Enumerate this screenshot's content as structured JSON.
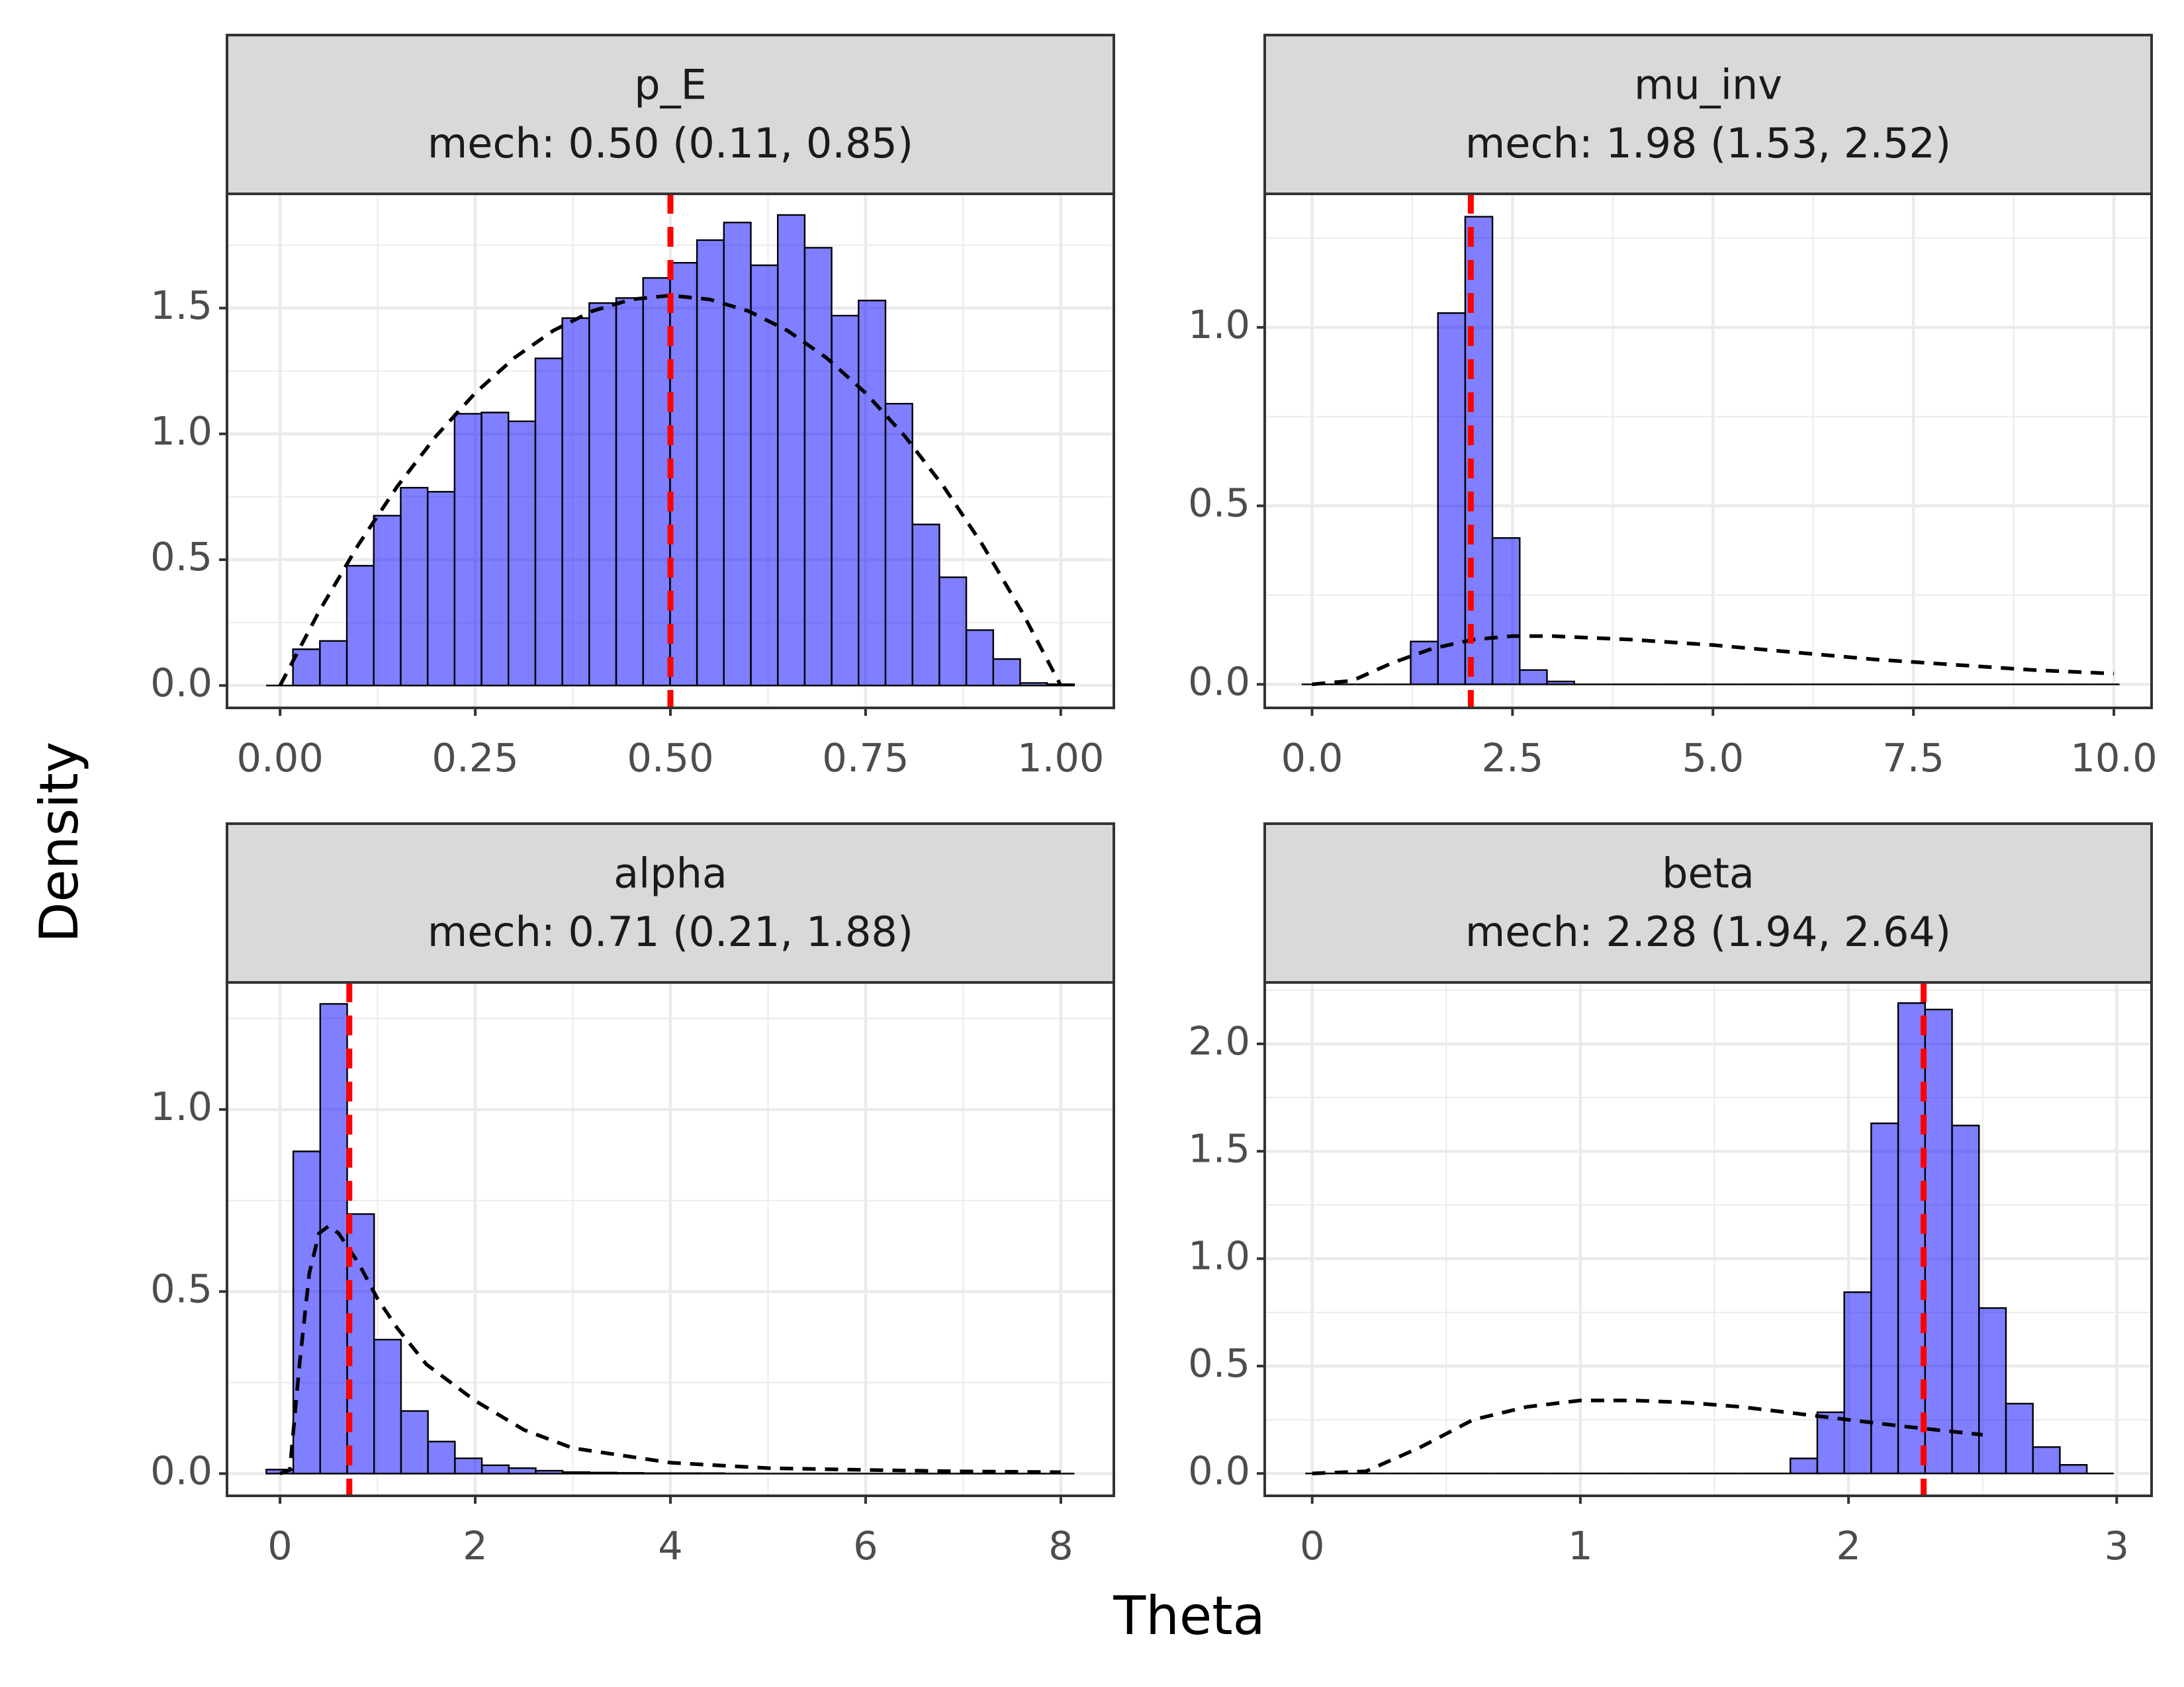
{
  "xlabel": "Theta",
  "ylabel": "Density",
  "chart_data": [
    {
      "type": "histogram",
      "title": "p_E",
      "subtitle": "mech: 0.50 (0.11, 0.85)",
      "bins": [
        -0.018,
        0.0165,
        0.051,
        0.0855,
        0.12,
        0.1545,
        0.189,
        0.2235,
        0.258,
        0.2925,
        0.327,
        0.3615,
        0.396,
        0.4305,
        0.465,
        0.4995,
        0.534,
        0.5685,
        0.603,
        0.6375,
        0.672,
        0.7065,
        0.741,
        0.7755,
        0.81,
        0.8445,
        0.879,
        0.9135,
        0.948,
        0.9825,
        1.017
      ],
      "values": [
        0,
        0.144,
        0.177,
        0.476,
        0.675,
        0.786,
        0.77,
        1.08,
        1.085,
        1.05,
        1.3,
        1.46,
        1.52,
        1.54,
        1.62,
        1.68,
        1.77,
        1.84,
        1.67,
        1.87,
        1.74,
        1.47,
        1.53,
        1.12,
        0.64,
        0.43,
        0.22,
        0.105,
        0.01,
        0.005
      ],
      "color": "#0000ff",
      "opacity": 0.5,
      "xlim": [
        -0.068,
        1.068
      ],
      "ylim": [
        -0.089,
        1.954
      ],
      "xticks": [
        {
          "value": 0,
          "label": "0.00"
        },
        0.25,
        {
          "value": 0.5,
          "label": "0.50"
        },
        0.75,
        {
          "value": 1,
          "label": "1.00"
        }
      ],
      "yticks": [
        {
          "value": 0,
          "label": "0.0"
        },
        0.5,
        {
          "value": 1,
          "label": "1.0"
        },
        1.5
      ],
      "grid": true,
      "vline": {
        "value": 0.5,
        "color": "#ff0000"
      },
      "prior": {
        "x": [
          0,
          0.05,
          0.1,
          0.15,
          0.2,
          0.25,
          0.3,
          0.35,
          0.4,
          0.45,
          0.5,
          0.55,
          0.6,
          0.65,
          0.7,
          0.75,
          0.8,
          0.85,
          0.9,
          0.95,
          1.0
        ],
        "values": [
          0,
          0.2945,
          0.558,
          0.7905,
          0.992,
          1.1625,
          1.302,
          1.4105,
          1.488,
          1.5345,
          1.55,
          1.5345,
          1.488,
          1.4105,
          1.302,
          1.1625,
          0.992,
          0.7905,
          0.558,
          0.2945,
          0
        ],
        "color": "#000000"
      }
    },
    {
      "type": "histogram",
      "title": "mu_inv",
      "subtitle": "mech: 1.98 (1.53, 2.52)",
      "bins": [
        -0.13,
        0.21,
        0.55,
        0.89,
        1.23,
        1.57,
        1.91,
        2.25,
        2.59,
        2.93,
        3.27,
        3.61,
        3.95,
        4.29,
        4.63,
        4.97,
        5.31,
        5.65,
        5.99,
        6.33,
        6.67,
        7.01,
        7.35,
        7.69,
        8.03,
        8.37,
        8.71,
        9.05,
        9.39,
        9.73,
        10.07
      ],
      "values": [
        0,
        0,
        0,
        0,
        0.12,
        1.04,
        1.31,
        0.41,
        0.04,
        0.008,
        0,
        0,
        0,
        0,
        0,
        0,
        0,
        0,
        0,
        0,
        0,
        0,
        0,
        0,
        0,
        0,
        0,
        0,
        0,
        0
      ],
      "color": "#0000ff",
      "opacity": 0.5,
      "xlim": [
        -0.59,
        10.47
      ],
      "ylim": [
        -0.066,
        1.374
      ],
      "xticks": [
        {
          "value": 0,
          "label": "0.0"
        },
        2.5,
        {
          "value": 5,
          "label": "5.0"
        },
        7.5,
        {
          "value": 10,
          "label": "10.0"
        }
      ],
      "yticks": [
        {
          "value": 0,
          "label": "0.0"
        },
        0.5,
        {
          "value": 1,
          "label": "1.0"
        }
      ],
      "grid": true,
      "vline": {
        "value": 1.98,
        "color": "#ff0000"
      },
      "prior": {
        "x": [
          0,
          0.5,
          1,
          1.5,
          2,
          2.5,
          3,
          4,
          5,
          6,
          7,
          8,
          9,
          10
        ],
        "values": [
          0,
          0.01,
          0.06,
          0.1,
          0.125,
          0.135,
          0.135,
          0.125,
          0.11,
          0.09,
          0.07,
          0.055,
          0.04,
          0.03
        ],
        "color": "#000000"
      }
    },
    {
      "type": "histogram",
      "title": "alpha",
      "subtitle": "mech: 0.71 (0.21, 1.88)",
      "bins": [
        -0.14,
        0.136,
        0.412,
        0.688,
        0.964,
        1.24,
        1.516,
        1.792,
        2.068,
        2.344,
        2.62,
        2.896,
        3.172,
        3.448,
        3.724,
        4.0,
        4.276,
        4.552,
        4.828,
        5.104,
        5.38,
        5.656,
        5.932,
        6.208,
        6.484,
        6.76,
        7.036,
        7.312,
        7.588,
        7.864,
        8.14
      ],
      "values": [
        0.011,
        0.885,
        1.29,
        0.713,
        0.368,
        0.172,
        0.088,
        0.042,
        0.023,
        0.015,
        0.008,
        0.004,
        0.003,
        0.002,
        0.001,
        0.001,
        0.001,
        0,
        0,
        0,
        0,
        0,
        0,
        0,
        0,
        0,
        0,
        0,
        0,
        0
      ],
      "color": "#0000ff",
      "opacity": 0.5,
      "xlim": [
        -0.543,
        8.543
      ],
      "ylim": [
        -0.061,
        1.349
      ],
      "xticks": [
        0,
        2,
        4,
        6,
        8
      ],
      "yticks": [
        {
          "value": 0,
          "label": "0.0"
        },
        0.5,
        {
          "value": 1,
          "label": "1.0"
        }
      ],
      "grid": true,
      "vline": {
        "value": 0.71,
        "color": "#ff0000"
      },
      "prior": {
        "x": [
          0,
          0.1,
          0.2,
          0.3,
          0.4,
          0.5,
          0.6,
          0.7,
          0.8,
          1.0,
          1.2,
          1.5,
          2,
          2.5,
          3,
          4,
          5,
          6,
          7,
          8
        ],
        "values": [
          0,
          0.01,
          0.3,
          0.55,
          0.66,
          0.68,
          0.66,
          0.62,
          0.58,
          0.48,
          0.4,
          0.3,
          0.2,
          0.12,
          0.07,
          0.03,
          0.015,
          0.01,
          0.006,
          0.004
        ],
        "color": "#000000"
      }
    },
    {
      "type": "histogram",
      "title": "beta",
      "subtitle": "mech: 2.28 (1.94, 2.64)",
      "bins": [
        -0.026,
        0.0745,
        0.175,
        0.2755,
        0.376,
        0.4765,
        0.577,
        0.6775,
        0.778,
        0.8785,
        0.979,
        1.0795,
        1.18,
        1.2805,
        1.381,
        1.4815,
        1.582,
        1.6825,
        1.783,
        1.8835,
        1.984,
        2.0845,
        2.185,
        2.2855,
        2.386,
        2.4865,
        2.587,
        2.6875,
        2.788,
        2.8885,
        2.989
      ],
      "values": [
        0,
        0,
        0,
        0,
        0,
        0,
        0,
        0,
        0,
        0,
        0,
        0,
        0,
        0,
        0,
        0,
        0,
        0,
        0.07,
        0.285,
        0.844,
        1.63,
        2.19,
        2.16,
        1.62,
        0.77,
        0.325,
        0.123,
        0.04,
        0
      ],
      "color": "#0000ff",
      "opacity": 0.5,
      "xlim": [
        -0.177,
        3.13
      ],
      "ylim": [
        -0.104,
        2.286
      ],
      "xticks": [
        0,
        1,
        2,
        3
      ],
      "yticks": [
        {
          "value": 0,
          "label": "0.0"
        },
        0.5,
        {
          "value": 1,
          "label": "1.0"
        },
        1.5,
        {
          "value": 2,
          "label": "2.0"
        }
      ],
      "grid": true,
      "vline": {
        "value": 2.28,
        "color": "#ff0000"
      },
      "prior": {
        "x": [
          0,
          0.2,
          0.4,
          0.6,
          0.8,
          1.0,
          1.2,
          1.4,
          1.6,
          1.8,
          2.0,
          2.2,
          2.5
        ],
        "values": [
          0,
          0.01,
          0.12,
          0.25,
          0.31,
          0.34,
          0.34,
          0.33,
          0.31,
          0.28,
          0.25,
          0.22,
          0.18
        ],
        "color": "#000000"
      }
    }
  ]
}
